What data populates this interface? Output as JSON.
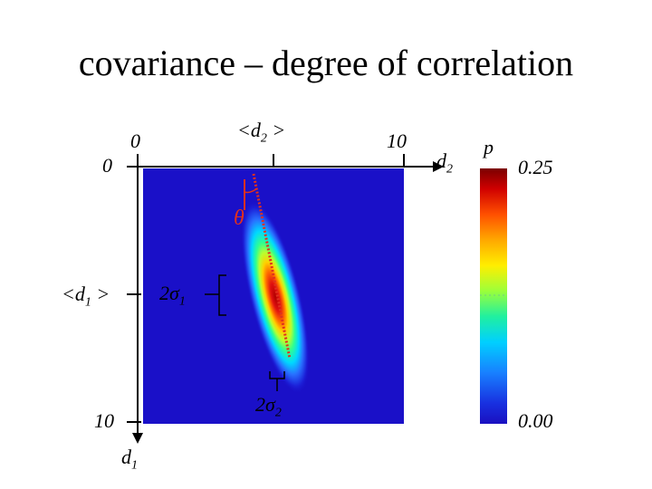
{
  "title": "covariance – degree of correlation",
  "axes": {
    "x": {
      "tick_start": "0",
      "tick_mean_prefix": "<d",
      "tick_mean_sub": "2",
      "tick_mean_suffix": " >",
      "tick_end": "10",
      "label_main": "d",
      "label_sub": "2"
    },
    "y": {
      "tick_start": "0",
      "tick_mean_prefix": "<d",
      "tick_mean_sub": "1",
      "tick_mean_suffix": " >",
      "tick_end": "10",
      "label_main": "d",
      "label_sub": "1"
    }
  },
  "annotations": {
    "theta": "θ",
    "sigma1_coef": "2",
    "sigma1_sym": "σ",
    "sigma1_sub": "1",
    "sigma2_coef": "2",
    "sigma2_sym": "σ",
    "sigma2_sub": "2"
  },
  "colorbar": {
    "label": "p",
    "max": "0.25",
    "min": "0.00"
  },
  "colors": {
    "background_low": "#1a10c8",
    "peak": "#c00000",
    "axis": "#000000",
    "annotation": "#e0301e"
  }
}
